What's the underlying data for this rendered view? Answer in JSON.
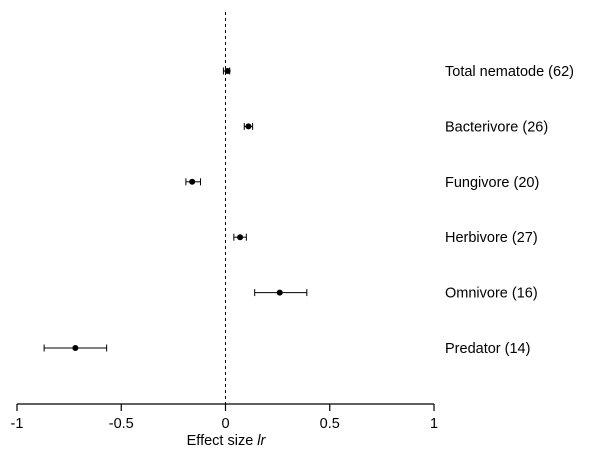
{
  "chart_data": {
    "type": "scatter",
    "subtype": "forest-plot",
    "categories": [
      "Total nematode (62)",
      "Bacterivore (26)",
      "Fungivore (20)",
      "Herbivore (27)",
      "Omnivore (16)",
      "Predator (14)"
    ],
    "series": [
      {
        "values": [
          0.01,
          0.11,
          -0.16,
          0.07,
          0.26,
          -0.72
        ],
        "ci_low": [
          -0.01,
          0.09,
          -0.19,
          0.04,
          0.14,
          -0.87
        ],
        "ci_high": [
          0.02,
          0.13,
          -0.12,
          0.1,
          0.39,
          -0.57
        ]
      }
    ],
    "xlabel_main": "Effect size ",
    "xlabel_italic": "lr",
    "xlim": [
      -1,
      1
    ],
    "x_ticks": [
      -1,
      -0.5,
      0,
      0.5,
      1
    ],
    "x_tick_labels": [
      "-1",
      "-0.5",
      "0",
      "0.5",
      "1"
    ],
    "reference_line": 0,
    "grid": false,
    "legend": "none"
  }
}
